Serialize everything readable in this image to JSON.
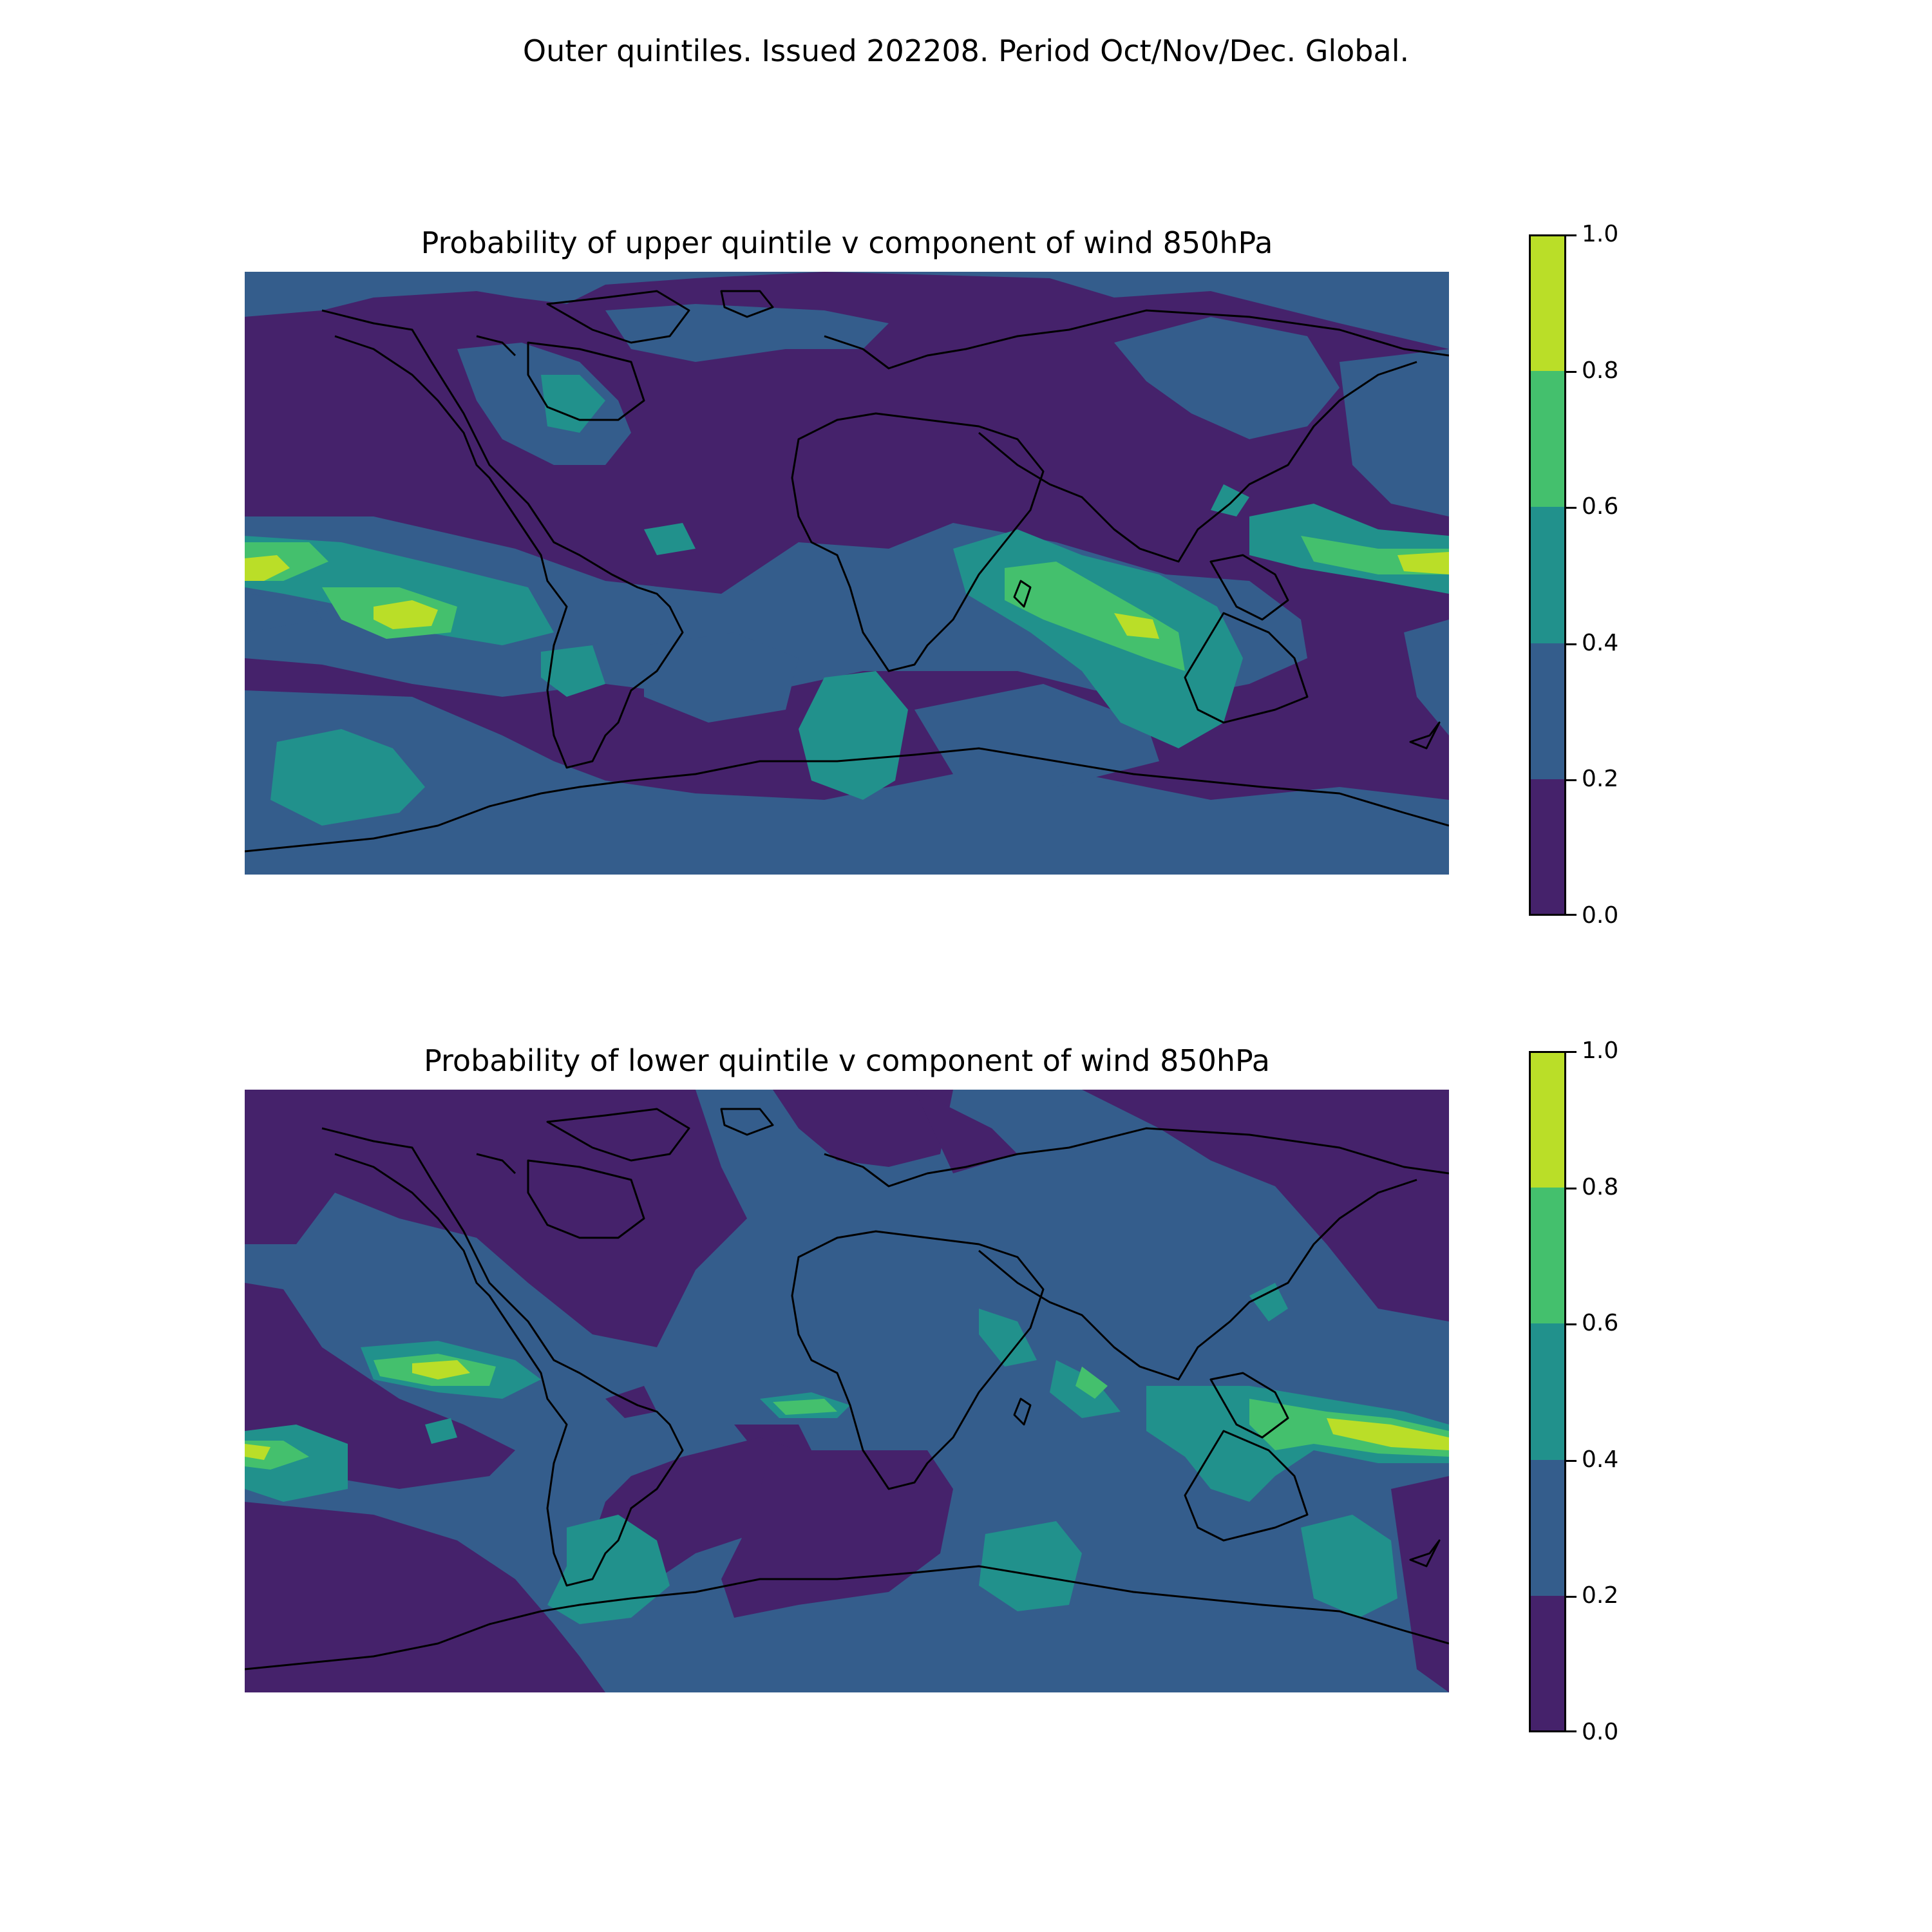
{
  "figure": {
    "suptitle": "Outer quintiles. Issued 202208. Period Oct/Nov/Dec. Global."
  },
  "colorbar": {
    "ticks": [
      "1.0",
      "0.8",
      "0.6",
      "0.4",
      "0.2",
      "0.0"
    ],
    "bins": [
      {
        "range": [
          0.0,
          0.2
        ],
        "color": "#45226b"
      },
      {
        "range": [
          0.2,
          0.4
        ],
        "color": "#345d8c"
      },
      {
        "range": [
          0.4,
          0.6
        ],
        "color": "#21918c"
      },
      {
        "range": [
          0.6,
          0.8
        ],
        "color": "#44c06d"
      },
      {
        "range": [
          0.8,
          1.0
        ],
        "color": "#bade28"
      }
    ]
  },
  "maps": [
    {
      "title": "Probability of upper quintile v component of wind 850hPa",
      "background_bin": 0
    },
    {
      "title": "Probability of lower quintile v component of wind 850hPa",
      "background_bin": 1
    }
  ]
}
